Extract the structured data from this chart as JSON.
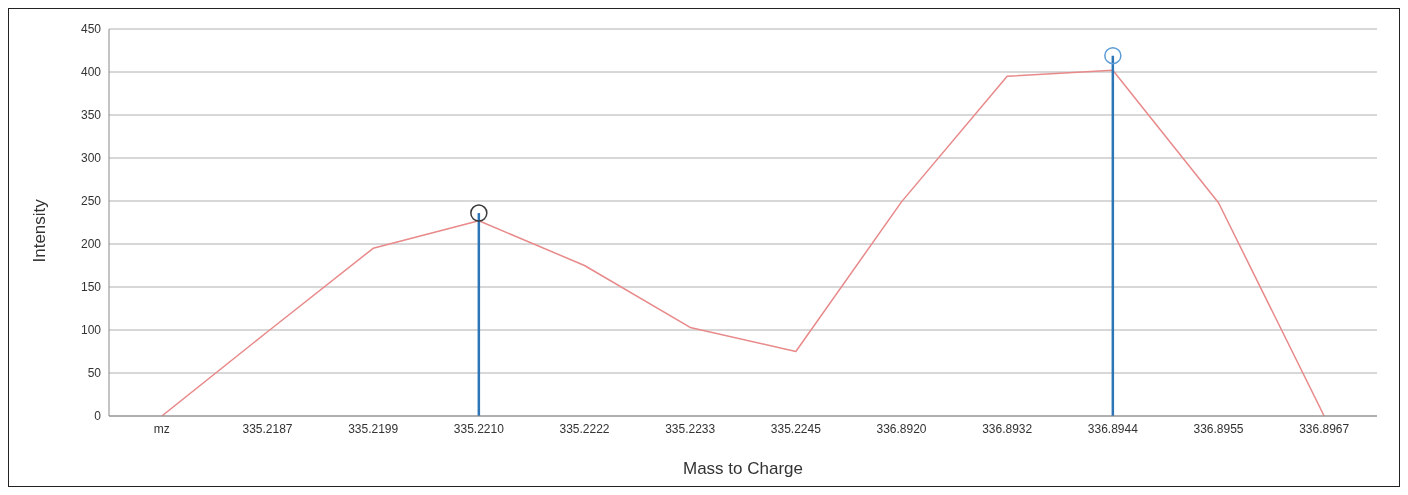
{
  "chart_data": {
    "type": "line",
    "xlabel": "Mass to Charge",
    "ylabel": "Intensity",
    "categories": [
      "mz",
      "335.2187",
      "335.2199",
      "335.2210",
      "335.2222",
      "335.2233",
      "335.2245",
      "336.8920",
      "336.8932",
      "336.8944",
      "336.8955",
      "336.8967"
    ],
    "series": [
      {
        "color": "#e8898a",
        "marker": "none",
        "values": [
          0,
          98,
          195,
          227,
          175,
          103,
          75,
          249,
          395,
          402,
          248,
          0
        ]
      },
      {
        "type": "lollipop",
        "color": "#2e75b6",
        "colors": [
          null,
          null,
          null,
          "#3a3a3a",
          null,
          null,
          null,
          null,
          null,
          "#5b9bd5",
          null,
          null
        ],
        "marker": "circle",
        "values": [
          null,
          null,
          null,
          236,
          null,
          null,
          null,
          null,
          null,
          419,
          null,
          null
        ]
      }
    ],
    "ylim": [
      0,
      450
    ],
    "yticks": [
      0,
      50,
      100,
      150,
      200,
      250,
      300,
      350,
      400,
      450
    ],
    "grid": "y"
  }
}
